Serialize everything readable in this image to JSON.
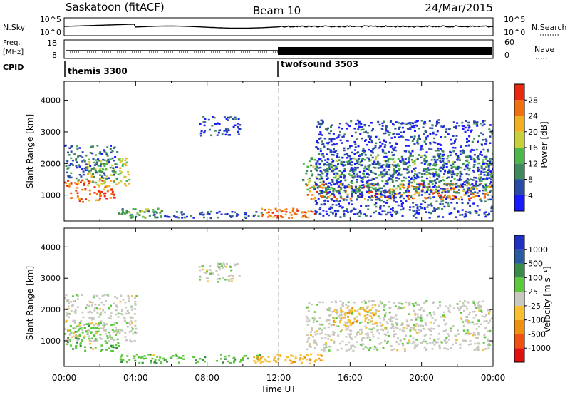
{
  "header": {
    "station": "Saskatoon (fitACF)",
    "beam": "Beam 10",
    "date": "24/Mar/2015"
  },
  "strips": {
    "nsky_label": "N.Sky",
    "nsky_ticks": [
      "10^5",
      "10^0"
    ],
    "nsky_ticks_right": [
      "10^5",
      "10^0"
    ],
    "nsearch_label": "N.Search",
    "freq_label_1": "Freq.",
    "freq_label_2": "[MHz]",
    "freq_ticks": [
      "18",
      "8"
    ],
    "nave_ticks": [
      "60",
      "0"
    ],
    "nave_label": "Nave",
    "cpid_label": "CPID",
    "cpid_1": "themis 3300",
    "cpid_2": "twofsound 3503"
  },
  "colors": {
    "power": [
      "#1a1aff",
      "#2a4aa8",
      "#3e8a5c",
      "#4cb84c",
      "#c8d03c",
      "#f0b020",
      "#f07010",
      "#e82810"
    ],
    "velocity": [
      "#e01010",
      "#f05010",
      "#f09010",
      "#f8c030",
      "#c8c8c0",
      "#5cc83c",
      "#3a8a4a",
      "#2a5aa0",
      "#2030c0"
    ]
  },
  "chart_data": [
    {
      "type": "heatmap",
      "name": "power",
      "xlabel": "",
      "ylabel": "Slant Range [km]",
      "xlim": [
        "00:00",
        "24:00"
      ],
      "ylim": [
        180,
        4600
      ],
      "yticks": [
        "1000",
        "2000",
        "3000",
        "4000"
      ],
      "colorbar_label": "Power [dB]",
      "colorbar_ticks": [
        "4",
        "8",
        "12",
        "16",
        "20",
        "24",
        "28"
      ],
      "colorbar_range": [
        0,
        32
      ],
      "vertical_marker_hour": 12,
      "regions": [
        {
          "t0": 0.0,
          "t1": 2.8,
          "r0": 800,
          "r1": 1500,
          "level": 27
        },
        {
          "t0": 1.2,
          "t1": 3.6,
          "r0": 1300,
          "r1": 2200,
          "level": 18
        },
        {
          "t0": 0.0,
          "t1": 3.0,
          "r0": 1500,
          "r1": 2600,
          "level": 8
        },
        {
          "t0": 3.0,
          "t1": 5.5,
          "r0": 300,
          "r1": 600,
          "level": 12
        },
        {
          "t0": 5.5,
          "t1": 11.0,
          "r0": 300,
          "r1": 500,
          "level": 6
        },
        {
          "t0": 11.0,
          "t1": 14.0,
          "r0": 300,
          "r1": 600,
          "level": 26
        },
        {
          "t0": 7.5,
          "t1": 9.8,
          "r0": 2900,
          "r1": 3500,
          "level": 5
        },
        {
          "t0": 13.5,
          "t1": 24.0,
          "r0": 900,
          "r1": 1400,
          "level": 25
        },
        {
          "t0": 13.3,
          "t1": 24.0,
          "r0": 1100,
          "r1": 2300,
          "level": 12
        },
        {
          "t0": 14.0,
          "t1": 24.0,
          "r0": 300,
          "r1": 3400,
          "level": 5
        }
      ]
    },
    {
      "type": "heatmap",
      "name": "velocity",
      "xlabel": "Time UT",
      "ylabel": "Slant Range [km]",
      "xlim": [
        "00:00",
        "24:00"
      ],
      "ylim": [
        180,
        4600
      ],
      "xticks": [
        "00:00",
        "04:00",
        "08:00",
        "12:00",
        "16:00",
        "20:00",
        "00:00"
      ],
      "yticks": [
        "1000",
        "2000",
        "3000",
        "4000"
      ],
      "colorbar_label": "Velocity [m s⁻¹]",
      "colorbar_ticks": [
        "-1000",
        "-500",
        "-100",
        "-25",
        "25",
        "100",
        "500",
        "1000"
      ],
      "vertical_marker_hour": 12,
      "regions": [
        {
          "t0": 0.0,
          "t1": 3.0,
          "r0": 700,
          "r1": 1600,
          "v": 60
        },
        {
          "t0": 0.0,
          "t1": 4.0,
          "r0": 1000,
          "r1": 2500,
          "v": 0
        },
        {
          "t0": 3.0,
          "t1": 11.0,
          "r0": 300,
          "r1": 600,
          "v": 60
        },
        {
          "t0": 10.5,
          "t1": 14.5,
          "r0": 300,
          "r1": 600,
          "v": -60
        },
        {
          "t0": 7.5,
          "t1": 9.8,
          "r0": 2900,
          "r1": 3500,
          "v": 0
        },
        {
          "t0": 13.5,
          "t1": 24.0,
          "r0": 700,
          "r1": 2300,
          "v": 0
        },
        {
          "t0": 15.0,
          "t1": 17.5,
          "r0": 1500,
          "r1": 2100,
          "v": -60
        }
      ]
    }
  ]
}
